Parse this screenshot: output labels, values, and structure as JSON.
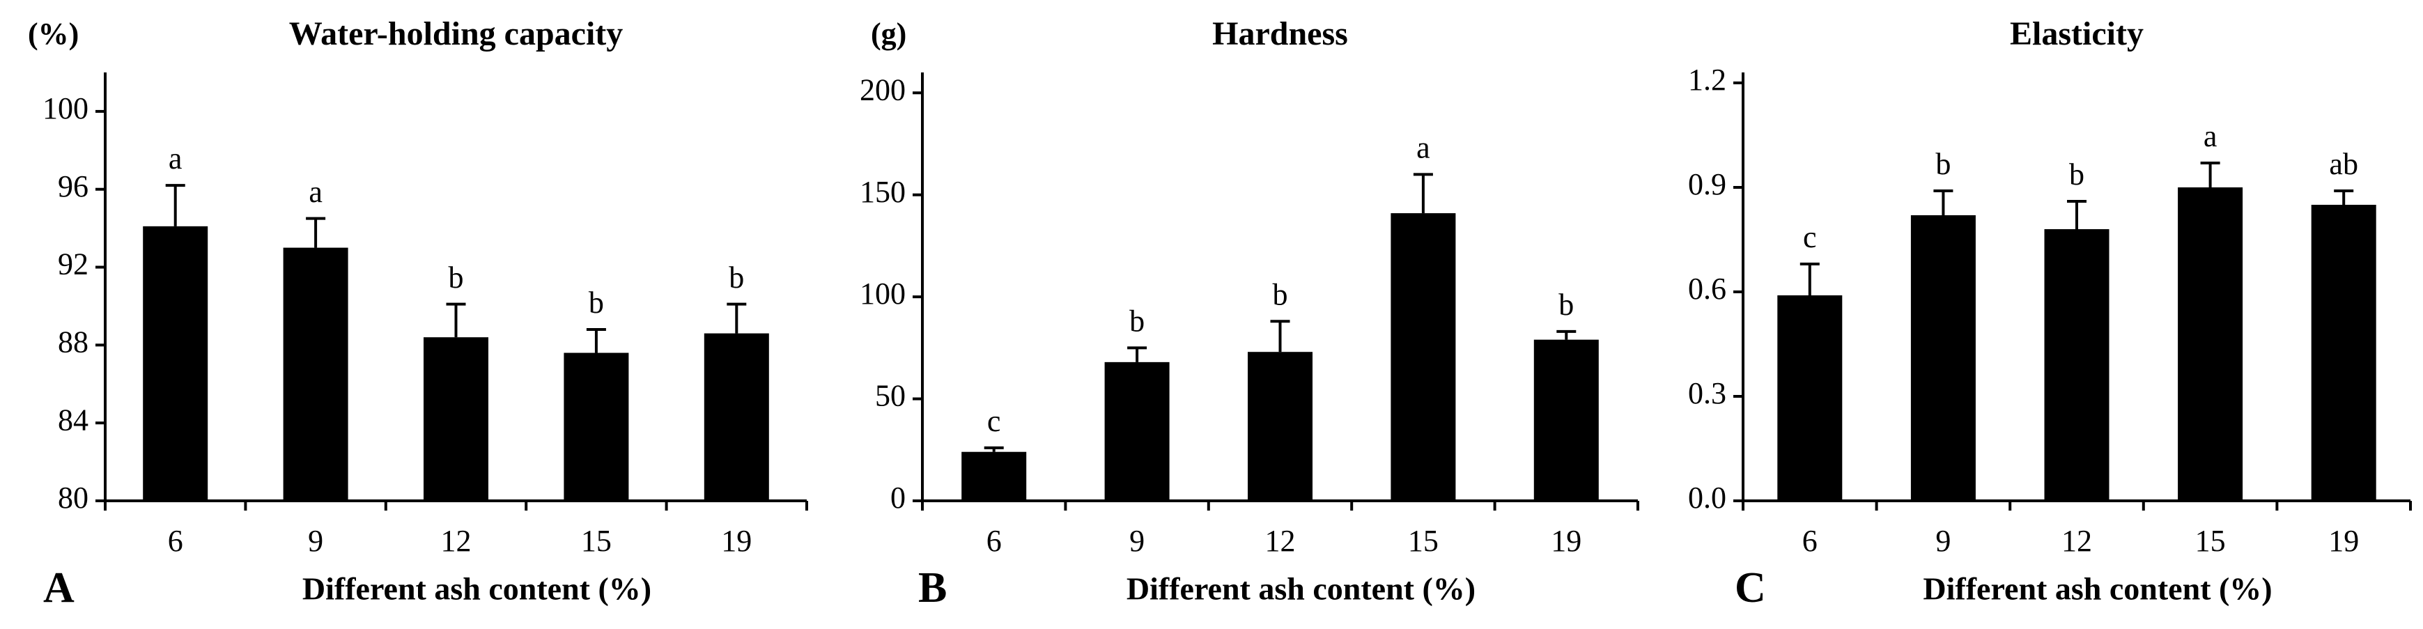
{
  "chart_data": [
    {
      "type": "bar",
      "title": "Water-holding capacity",
      "panel": "A",
      "y_unit": "(%)",
      "x_label": "Different ash content (%)",
      "categories": [
        "6",
        "9",
        "12",
        "15",
        "19"
      ],
      "values": [
        94.1,
        93.0,
        88.4,
        87.6,
        88.6
      ],
      "errors": [
        2.1,
        1.5,
        1.7,
        1.2,
        1.5
      ],
      "letters": [
        "a",
        "a",
        "b",
        "b",
        "b"
      ],
      "color": "#000000",
      "ylim": [
        80,
        102
      ],
      "yticks": [
        80,
        84,
        88,
        92,
        96,
        100
      ]
    },
    {
      "type": "bar",
      "title": "Hardness",
      "panel": "B",
      "y_unit": "(g)",
      "x_label": "Different ash content (%)",
      "categories": [
        "6",
        "9",
        "12",
        "15",
        "19"
      ],
      "values": [
        24,
        68,
        73,
        141,
        79
      ],
      "errors": [
        2,
        7,
        15,
        19,
        4
      ],
      "letters": [
        "c",
        "b",
        "b",
        "a",
        "b"
      ],
      "color": "#000000",
      "ylim": [
        0,
        210
      ],
      "yticks": [
        0,
        50,
        100,
        150,
        200
      ]
    },
    {
      "type": "bar",
      "title": "Elasticity",
      "panel": "C",
      "x_label": "Different ash content (%)",
      "categories": [
        "6",
        "9",
        "12",
        "15",
        "19"
      ],
      "values": [
        0.59,
        0.82,
        0.78,
        0.9,
        0.85
      ],
      "errors": [
        0.09,
        0.07,
        0.08,
        0.07,
        0.04
      ],
      "letters": [
        "c",
        "b",
        "b",
        "a",
        "ab"
      ],
      "color": "#000000",
      "ylim": [
        0,
        1.23
      ],
      "yticks": [
        {
          "value": 0,
          "label": "0.0"
        },
        {
          "value": 0.3,
          "label": "0.3"
        },
        {
          "value": 0.6,
          "label": "0.6"
        },
        {
          "value": 0.9,
          "label": "0.9"
        },
        {
          "value": 1.2,
          "label": "1.2"
        }
      ]
    }
  ]
}
